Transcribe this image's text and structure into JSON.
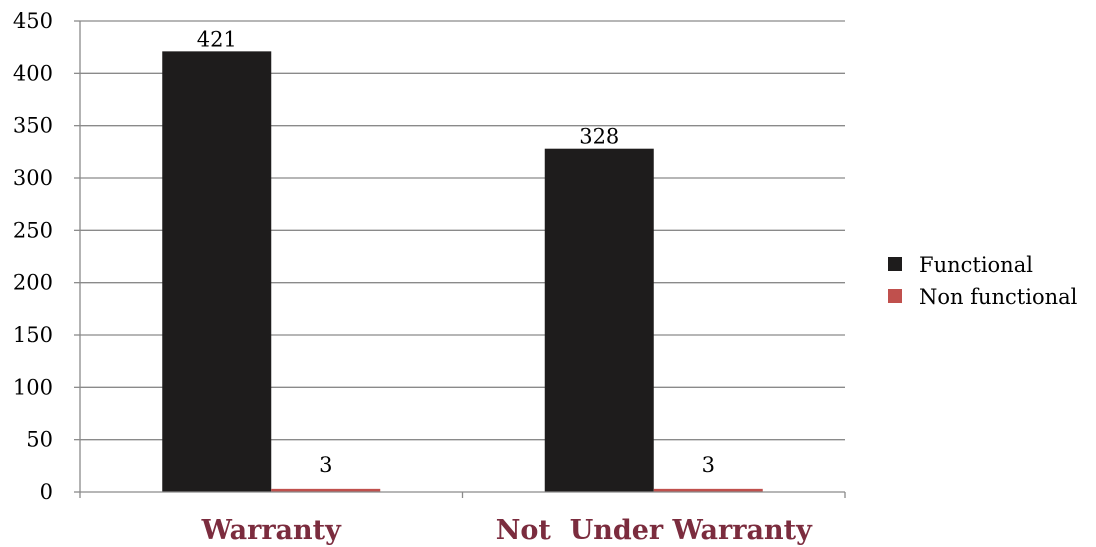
{
  "chart_data": {
    "type": "bar",
    "categories": [
      "Warranty",
      "Not  Under Warranty"
    ],
    "series": [
      {
        "name": "Functional",
        "values": [
          421,
          328
        ],
        "color": "#1e1c1c"
      },
      {
        "name": "Non functional",
        "values": [
          3,
          3
        ],
        "color": "#c0504d"
      }
    ],
    "ylim": [
      0,
      450
    ],
    "yticks": [
      "0",
      "50",
      "100",
      "150",
      "200",
      "250",
      "300",
      "350",
      "400",
      "450"
    ],
    "grid": true,
    "legend_position": "right",
    "category_label_color": "#7b2c3e",
    "data_labels": true
  }
}
